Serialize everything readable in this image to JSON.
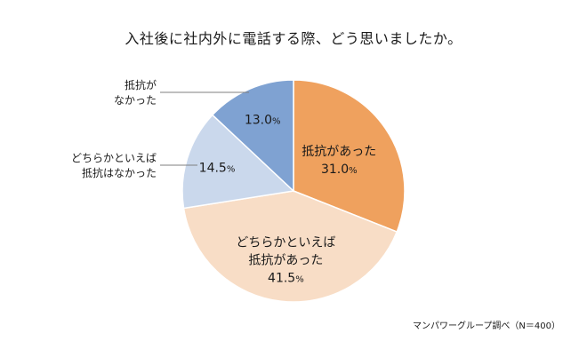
{
  "chart_data": {
    "type": "pie",
    "title": "入社後に社内外に電話する際、どう思いましたか。",
    "unit": "%",
    "slices": [
      {
        "name": "抵抗があった",
        "lines": [
          "抵抗があった"
        ],
        "value": 31.0,
        "value_label": "31.0",
        "color": "#EFA15E",
        "label_position": "inside"
      },
      {
        "name": "どちらかといえば抵抗があった",
        "lines": [
          "どちらかといえば",
          "抵抗があった"
        ],
        "value": 41.5,
        "value_label": "41.5",
        "color": "#F8DDC6",
        "label_position": "inside"
      },
      {
        "name": "どちらかといえば抵抗はなかった",
        "lines": [
          "どちらかといえば",
          "抵抗はなかった"
        ],
        "value": 14.5,
        "value_label": "14.5",
        "color": "#CAD8EC",
        "label_position": "outside"
      },
      {
        "name": "抵抗がなかった",
        "lines": [
          "抵抗が",
          "なかった"
        ],
        "value": 13.0,
        "value_label": "13.0",
        "color": "#7FA2D2",
        "label_position": "outside"
      }
    ],
    "source": "マンパワーグループ調べ（N＝400）"
  }
}
